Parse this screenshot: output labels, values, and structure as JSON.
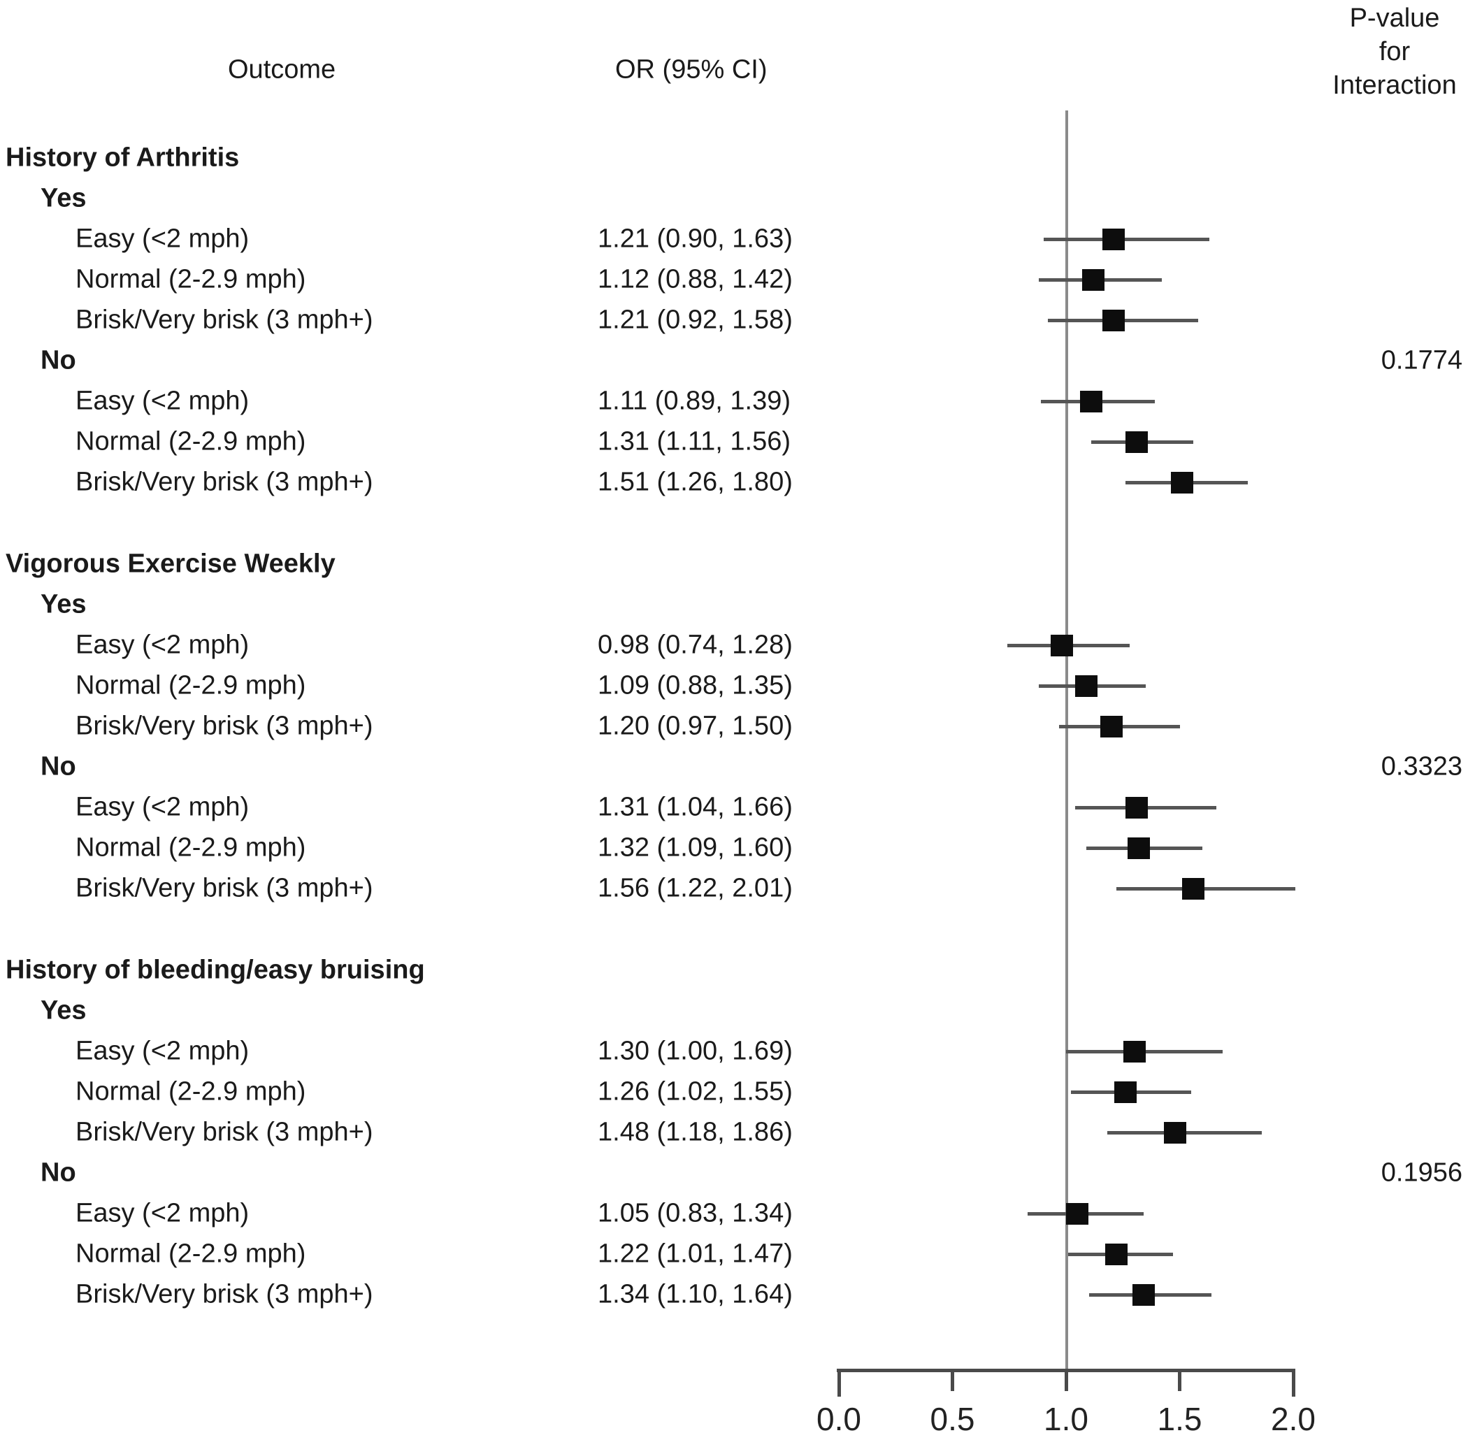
{
  "figure": {
    "columns": {
      "outcome": "Outcome",
      "or_ci": "OR (95% CI)",
      "pvalue_header": [
        "P-value",
        "for",
        "Interaction"
      ]
    }
  },
  "chart_data": {
    "type": "forest",
    "title": "",
    "xlabel": "",
    "legend": "none",
    "marker": "black-square",
    "x_axis": {
      "range": [
        0.0,
        2.0
      ],
      "ticks": [
        0.0,
        0.5,
        1.0,
        1.5,
        2.0
      ],
      "tick_labels": [
        "0.0",
        "0.5",
        "1.0",
        "1.5",
        "2.0"
      ],
      "reference_line": 1.0
    },
    "sections": [
      {
        "title": "History of Arthritis",
        "p_value_interaction": "0.1774",
        "subgroups": [
          {
            "label": "Yes",
            "rows": [
              {
                "label": "Easy (<2 mph)",
                "or": 1.21,
                "lo": 0.9,
                "hi": 1.63,
                "text": "1.21 (0.90, 1.63)"
              },
              {
                "label": "Normal (2-2.9 mph)",
                "or": 1.12,
                "lo": 0.88,
                "hi": 1.42,
                "text": "1.12 (0.88, 1.42)"
              },
              {
                "label": "Brisk/Very brisk (3 mph+)",
                "or": 1.21,
                "lo": 0.92,
                "hi": 1.58,
                "text": "1.21 (0.92, 1.58)"
              }
            ]
          },
          {
            "label": "No",
            "rows": [
              {
                "label": "Easy (<2 mph)",
                "or": 1.11,
                "lo": 0.89,
                "hi": 1.39,
                "text": "1.11 (0.89, 1.39)"
              },
              {
                "label": "Normal (2-2.9 mph)",
                "or": 1.31,
                "lo": 1.11,
                "hi": 1.56,
                "text": "1.31 (1.11, 1.56)"
              },
              {
                "label": "Brisk/Very brisk (3 mph+)",
                "or": 1.51,
                "lo": 1.26,
                "hi": 1.8,
                "text": "1.51 (1.26, 1.80)"
              }
            ]
          }
        ]
      },
      {
        "title": "Vigorous Exercise Weekly",
        "p_value_interaction": "0.3323",
        "subgroups": [
          {
            "label": "Yes",
            "rows": [
              {
                "label": "Easy (<2 mph)",
                "or": 0.98,
                "lo": 0.74,
                "hi": 1.28,
                "text": "0.98 (0.74, 1.28)"
              },
              {
                "label": "Normal (2-2.9 mph)",
                "or": 1.09,
                "lo": 0.88,
                "hi": 1.35,
                "text": "1.09 (0.88, 1.35)"
              },
              {
                "label": "Brisk/Very brisk (3 mph+)",
                "or": 1.2,
                "lo": 0.97,
                "hi": 1.5,
                "text": "1.20 (0.97, 1.50)"
              }
            ]
          },
          {
            "label": "No",
            "rows": [
              {
                "label": "Easy (<2 mph)",
                "or": 1.31,
                "lo": 1.04,
                "hi": 1.66,
                "text": "1.31 (1.04, 1.66)"
              },
              {
                "label": "Normal (2-2.9 mph)",
                "or": 1.32,
                "lo": 1.09,
                "hi": 1.6,
                "text": "1.32 (1.09, 1.60)"
              },
              {
                "label": "Brisk/Very brisk (3 mph+)",
                "or": 1.56,
                "lo": 1.22,
                "hi": 2.01,
                "text": "1.56 (1.22, 2.01)"
              }
            ]
          }
        ]
      },
      {
        "title": "History of bleeding/easy bruising",
        "p_value_interaction": "0.1956",
        "subgroups": [
          {
            "label": "Yes",
            "rows": [
              {
                "label": "Easy (<2 mph)",
                "or": 1.3,
                "lo": 1.0,
                "hi": 1.69,
                "text": "1.30 (1.00, 1.69)"
              },
              {
                "label": "Normal (2-2.9 mph)",
                "or": 1.26,
                "lo": 1.02,
                "hi": 1.55,
                "text": "1.26 (1.02, 1.55)"
              },
              {
                "label": "Brisk/Very brisk (3 mph+)",
                "or": 1.48,
                "lo": 1.18,
                "hi": 1.86,
                "text": "1.48 (1.18, 1.86)"
              }
            ]
          },
          {
            "label": "No",
            "rows": [
              {
                "label": "Easy (<2 mph)",
                "or": 1.05,
                "lo": 0.83,
                "hi": 1.34,
                "text": "1.05 (0.83, 1.34)"
              },
              {
                "label": "Normal (2-2.9 mph)",
                "or": 1.22,
                "lo": 1.01,
                "hi": 1.47,
                "text": "1.22 (1.01, 1.47)"
              },
              {
                "label": "Brisk/Very brisk (3 mph+)",
                "or": 1.34,
                "lo": 1.1,
                "hi": 1.64,
                "text": "1.34 (1.10, 1.64)"
              }
            ]
          }
        ]
      }
    ]
  }
}
